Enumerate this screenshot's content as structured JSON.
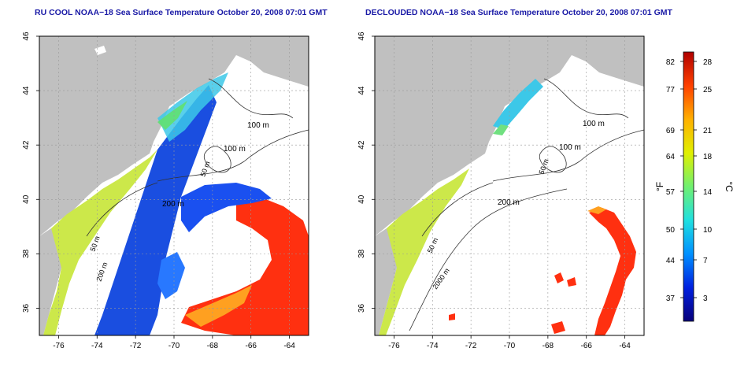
{
  "titles": {
    "left": "RU COOL NOAA−18 Sea Surface Temperature October 20, 2008 07:01 GMT",
    "right": "DECLOUDED NOAA−18 Sea Surface Temperature October 20, 2008 07:01 GMT"
  },
  "axes": {
    "lon_ticks": [
      "-76",
      "-74",
      "-72",
      "-70",
      "-68",
      "-66",
      "-64"
    ],
    "lat_ticks": [
      "36",
      "38",
      "40",
      "42",
      "44",
      "46"
    ]
  },
  "contour_labels": {
    "left": [
      "100 m",
      "100 m",
      "50 m",
      "200 m",
      "50 m",
      "200 m"
    ],
    "right": [
      "100 m",
      "100 m",
      "50 m",
      "200 m",
      "50 m",
      "2000 m"
    ]
  },
  "colorbar": {
    "f_label": "°F",
    "c_label": "°C",
    "f_ticks": [
      "82",
      "77",
      "69",
      "64",
      "57",
      "50",
      "44",
      "37"
    ],
    "c_ticks": [
      "28",
      "25",
      "21",
      "18",
      "14",
      "10",
      "7",
      "3"
    ],
    "colors": [
      "#08007a",
      "#0020e0",
      "#0090ff",
      "#20e0e0",
      "#70f070",
      "#e0f000",
      "#ffb000",
      "#ff4000",
      "#b00000"
    ]
  },
  "colors": {
    "land": "#c0c0c0",
    "title": "#1a1aa6"
  }
}
